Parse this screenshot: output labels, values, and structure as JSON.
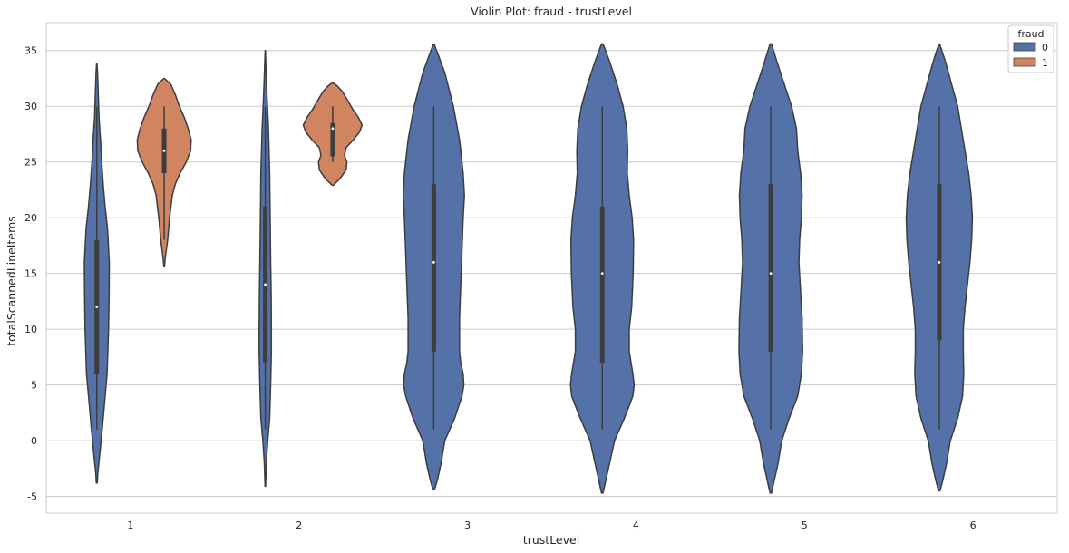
{
  "chart_data": {
    "type": "violin",
    "title": "Violin Plot: fraud - trustLevel",
    "xlabel": "trustLevel",
    "ylabel": "totalScannedLineItems",
    "categories": [
      "1",
      "2",
      "3",
      "4",
      "5",
      "6"
    ],
    "ylim": [
      -6.5,
      37.5
    ],
    "yticks": [
      -5,
      0,
      5,
      10,
      15,
      20,
      25,
      30,
      35
    ],
    "grid": true,
    "legend": {
      "title": "fraud",
      "position": "top-right",
      "entries": [
        "0",
        "1"
      ]
    },
    "colors": {
      "0": "#5471a8",
      "1": "#d0845f",
      "outline": "#3d3d3d",
      "box": "#3d3d3d",
      "median": "#ffffff",
      "grid": "#cccccc",
      "frame": "#cccccc"
    },
    "violins": [
      {
        "category": "1",
        "hue": "0",
        "min": 1,
        "q1": 6,
        "median": 12,
        "q3": 18,
        "max": 30,
        "profile": [
          [
            -3.8,
            0.2
          ],
          [
            -3,
            0.4
          ],
          [
            -1,
            1.3
          ],
          [
            1,
            2.2
          ],
          [
            3,
            3
          ],
          [
            6,
            4.2
          ],
          [
            10,
            4.8
          ],
          [
            13,
            5
          ],
          [
            16,
            5.1
          ],
          [
            19,
            4.4
          ],
          [
            21,
            3.4
          ],
          [
            23,
            2.6
          ],
          [
            25,
            2
          ],
          [
            27,
            1.5
          ],
          [
            29,
            0.9
          ],
          [
            31,
            0.6
          ],
          [
            33,
            0.3
          ],
          [
            33.8,
            0.1
          ]
        ]
      },
      {
        "category": "1",
        "hue": "1",
        "min": 18,
        "q1": 24,
        "median": 26,
        "q3": 28,
        "max": 30,
        "profile": [
          [
            15.6,
            0.1
          ],
          [
            16.5,
            0.5
          ],
          [
            18,
            1.4
          ],
          [
            20,
            2.2
          ],
          [
            22,
            3.3
          ],
          [
            23,
            4.5
          ],
          [
            24,
            6.5
          ],
          [
            25,
            9
          ],
          [
            26,
            10.8
          ],
          [
            27,
            11
          ],
          [
            28,
            9.8
          ],
          [
            29,
            8.2
          ],
          [
            30,
            6.2
          ],
          [
            31,
            4.6
          ],
          [
            32,
            2.6
          ],
          [
            32.5,
            0.1
          ]
        ]
      },
      {
        "category": "2",
        "hue": "0",
        "min": 1,
        "q1": 7,
        "median": 14,
        "q3": 21,
        "max": 30,
        "profile": [
          [
            -4.1,
            0.1
          ],
          [
            -2,
            0.4
          ],
          [
            0,
            1
          ],
          [
            2,
            1.8
          ],
          [
            5,
            2.2
          ],
          [
            8,
            2.5
          ],
          [
            10,
            2.5
          ],
          [
            13,
            2.4
          ],
          [
            16,
            2.2
          ],
          [
            20,
            2
          ],
          [
            24,
            1.8
          ],
          [
            28,
            1.3
          ],
          [
            30,
            0.9
          ],
          [
            32,
            0.5
          ],
          [
            34,
            0.2
          ],
          [
            35,
            0.05
          ]
        ]
      },
      {
        "category": "2",
        "hue": "1",
        "min": 25,
        "q1": 25.5,
        "median": 28,
        "q3": 28.5,
        "max": 30,
        "profile": [
          [
            22.9,
            0.2
          ],
          [
            23.5,
            3
          ],
          [
            24.3,
            5.5
          ],
          [
            25,
            5.8
          ],
          [
            25.6,
            4.8
          ],
          [
            26.3,
            5.5
          ],
          [
            27,
            8.5
          ],
          [
            27.7,
            11
          ],
          [
            28.3,
            12
          ],
          [
            29,
            10.5
          ],
          [
            29.8,
            8
          ],
          [
            30.5,
            6.2
          ],
          [
            31.3,
            4
          ],
          [
            31.8,
            2
          ],
          [
            32.1,
            0.2
          ]
        ]
      },
      {
        "category": "3",
        "hue": "0",
        "min": 1,
        "q1": 8,
        "median": 16,
        "q3": 23,
        "max": 30,
        "profile": [
          [
            -4.4,
            0.3
          ],
          [
            -3.5,
            1.5
          ],
          [
            -2,
            3
          ],
          [
            0,
            4.5
          ],
          [
            2,
            8.5
          ],
          [
            4,
            11.5
          ],
          [
            5,
            12.3
          ],
          [
            6,
            12
          ],
          [
            7,
            11
          ],
          [
            8,
            10.5
          ],
          [
            11,
            10.5
          ],
          [
            14,
            11
          ],
          [
            17,
            11.5
          ],
          [
            20,
            12
          ],
          [
            22,
            12.5
          ],
          [
            24,
            12
          ],
          [
            27,
            10.5
          ],
          [
            30,
            8
          ],
          [
            33,
            4.5
          ],
          [
            34.5,
            2
          ],
          [
            35.5,
            0.3
          ]
        ]
      },
      {
        "category": "4",
        "hue": "0",
        "min": 1,
        "q1": 7,
        "median": 15,
        "q3": 21,
        "max": 30,
        "profile": [
          [
            -4.7,
            0.3
          ],
          [
            -3.5,
            1.5
          ],
          [
            -2,
            3
          ],
          [
            0,
            5
          ],
          [
            2,
            9
          ],
          [
            4,
            12.5
          ],
          [
            5,
            13
          ],
          [
            6,
            12.5
          ],
          [
            8,
            11
          ],
          [
            10,
            11
          ],
          [
            12,
            12
          ],
          [
            15,
            12.6
          ],
          [
            18,
            12.8
          ],
          [
            20,
            12.2
          ],
          [
            22,
            11
          ],
          [
            24,
            10.2
          ],
          [
            26,
            10.4
          ],
          [
            28,
            10
          ],
          [
            30,
            8.5
          ],
          [
            32,
            6
          ],
          [
            34,
            3
          ],
          [
            35.6,
            0.3
          ]
        ]
      },
      {
        "category": "5",
        "hue": "0",
        "min": 1,
        "q1": 8,
        "median": 15,
        "q3": 23,
        "max": 30,
        "profile": [
          [
            -4.7,
            0.3
          ],
          [
            -3.5,
            1.5
          ],
          [
            -2,
            3
          ],
          [
            0,
            4.5
          ],
          [
            2,
            7.5
          ],
          [
            4,
            11
          ],
          [
            6,
            12.5
          ],
          [
            8,
            13
          ],
          [
            11,
            12.8
          ],
          [
            14,
            12
          ],
          [
            16,
            11.5
          ],
          [
            18,
            11.8
          ],
          [
            20,
            12.5
          ],
          [
            22,
            12.8
          ],
          [
            24,
            12.2
          ],
          [
            26,
            11
          ],
          [
            28,
            10.5
          ],
          [
            30,
            8.5
          ],
          [
            32,
            5.5
          ],
          [
            34,
            2.5
          ],
          [
            35.6,
            0.3
          ]
        ]
      },
      {
        "category": "6",
        "hue": "0",
        "min": 1,
        "q1": 9,
        "median": 16,
        "q3": 23,
        "max": 30,
        "profile": [
          [
            -4.5,
            0.3
          ],
          [
            -3.5,
            1.5
          ],
          [
            -2,
            3
          ],
          [
            0,
            4.5
          ],
          [
            2,
            7.5
          ],
          [
            4,
            9.5
          ],
          [
            6,
            10
          ],
          [
            8,
            9.8
          ],
          [
            10,
            9.8
          ],
          [
            12,
            10.5
          ],
          [
            14,
            11.5
          ],
          [
            16,
            12.5
          ],
          [
            18,
            13.2
          ],
          [
            20,
            13.5
          ],
          [
            22,
            13
          ],
          [
            24,
            12
          ],
          [
            26,
            10.5
          ],
          [
            28,
            9
          ],
          [
            30,
            7.5
          ],
          [
            32,
            5
          ],
          [
            34,
            2.5
          ],
          [
            35.5,
            0.3
          ]
        ]
      }
    ]
  }
}
